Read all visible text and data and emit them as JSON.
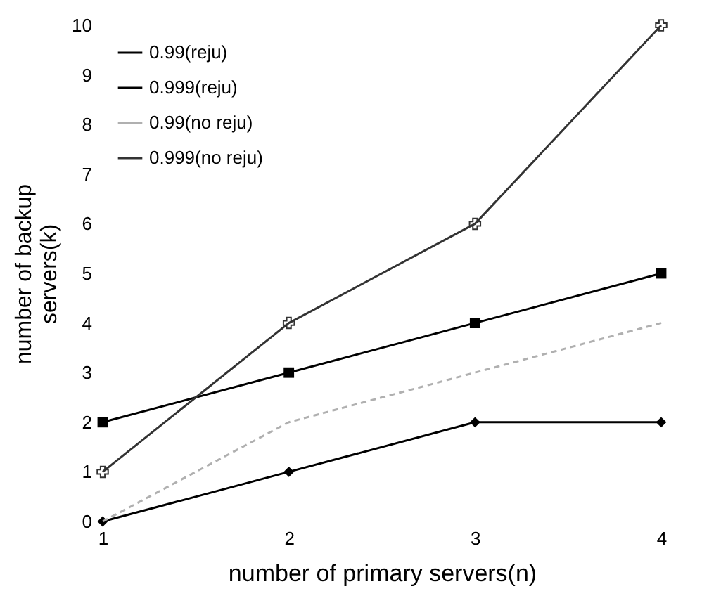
{
  "chart_data": {
    "type": "line",
    "xlabel": "number of primary servers(n)",
    "ylabel": "number of backup servers(k)",
    "x": [
      1,
      2,
      3,
      4
    ],
    "xlim": [
      1,
      4
    ],
    "xticks": [
      1,
      2,
      3,
      4
    ],
    "ylim": [
      0,
      10
    ],
    "yticks": [
      0,
      1,
      2,
      3,
      4,
      5,
      6,
      7,
      8,
      9,
      10
    ],
    "grid": false,
    "legend": "top left",
    "series": [
      {
        "name": "0.99(reju)",
        "color": "#000000",
        "marker": "diamond",
        "line_style": "solid",
        "values": [
          0,
          1,
          2,
          2
        ]
      },
      {
        "name": "0.999(reju)",
        "color": "#000000",
        "marker": "square",
        "line_style": "solid",
        "values": [
          2,
          3,
          4,
          5
        ]
      },
      {
        "name": "0.99(no reju)",
        "color": "#b0b0b0",
        "marker": "none",
        "line_style": "dashed",
        "values": [
          0,
          2,
          3,
          4
        ]
      },
      {
        "name": "0.999(no reju)",
        "color": "#333333",
        "marker": "cross",
        "line_style": "solid",
        "values": [
          1,
          4,
          6,
          10
        ]
      }
    ]
  }
}
